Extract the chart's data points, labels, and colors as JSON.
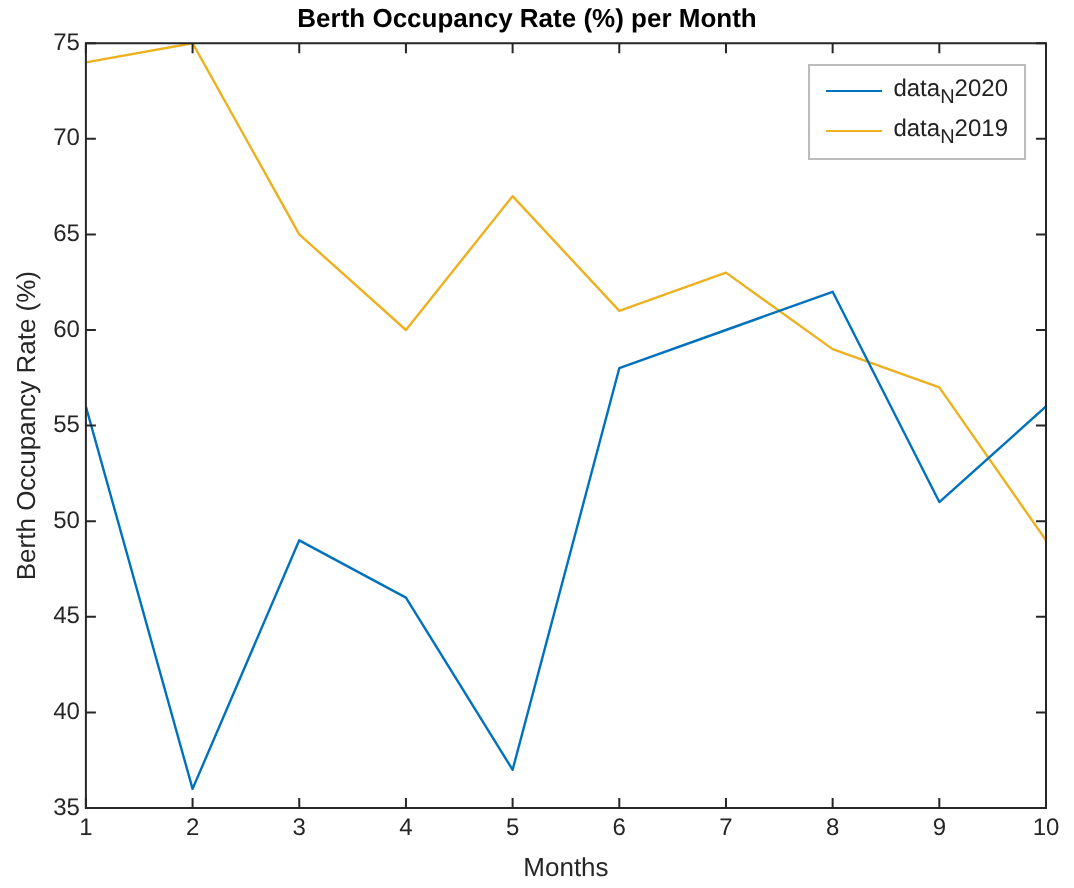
{
  "chart_data": {
    "type": "line",
    "title": "Berth Occupancy Rate (%) per Month",
    "xlabel": "Months",
    "ylabel": "Berth Occupancy Rate (%)",
    "x": [
      1,
      2,
      3,
      4,
      5,
      6,
      7,
      8,
      9,
      10
    ],
    "xlim": [
      1,
      10
    ],
    "xticks": [
      1,
      2,
      3,
      4,
      5,
      6,
      7,
      8,
      9,
      10
    ],
    "ylim": [
      35,
      75
    ],
    "yticks": [
      35,
      40,
      45,
      50,
      55,
      60,
      65,
      70,
      75
    ],
    "series": [
      {
        "name": "data$_{N}$2020",
        "color": "#0072bd",
        "values": [
          56,
          36,
          49,
          46,
          37,
          58,
          60,
          62,
          51,
          56
        ]
      },
      {
        "name": "data$_{N}$2019",
        "color": "#edb120",
        "values": [
          74,
          75,
          65,
          60,
          67,
          61,
          63,
          59,
          57,
          49
        ]
      }
    ],
    "legend": "top right",
    "grid": false,
    "marker": "none",
    "line_style": "solid"
  }
}
